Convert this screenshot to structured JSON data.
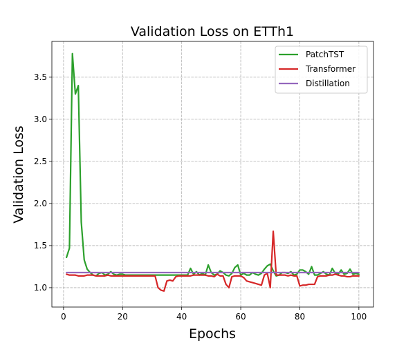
{
  "chart_data": {
    "type": "line",
    "title": "Validation Loss on ETTh1",
    "xlabel": "Epochs",
    "ylabel": "Validation Loss",
    "xlim": [
      -3.95,
      104.95
    ],
    "ylim": [
      0.77,
      3.925
    ],
    "xticks": [
      0,
      20,
      40,
      60,
      80,
      100
    ],
    "xtick_labels": [
      "0",
      "20",
      "40",
      "60",
      "80",
      "100"
    ],
    "yticks": [
      1.0,
      1.5,
      2.0,
      2.5,
      3.0,
      3.5
    ],
    "ytick_labels": [
      "1.0",
      "1.5",
      "2.0",
      "2.5",
      "3.0",
      "3.5"
    ],
    "grid": true,
    "legend": "top-right",
    "x": [
      1,
      2,
      3,
      4,
      5,
      6,
      7,
      8,
      9,
      10,
      11,
      12,
      13,
      14,
      15,
      16,
      17,
      18,
      19,
      20,
      21,
      22,
      23,
      24,
      25,
      26,
      27,
      28,
      29,
      30,
      31,
      32,
      33,
      34,
      35,
      36,
      37,
      38,
      39,
      40,
      41,
      42,
      43,
      44,
      45,
      46,
      47,
      48,
      49,
      50,
      51,
      52,
      53,
      54,
      55,
      56,
      57,
      58,
      59,
      60,
      61,
      62,
      63,
      64,
      65,
      66,
      67,
      68,
      69,
      70,
      71,
      72,
      73,
      74,
      75,
      76,
      77,
      78,
      79,
      80,
      81,
      82,
      83,
      84,
      85,
      86,
      87,
      88,
      89,
      90,
      91,
      92,
      93,
      94,
      95,
      96,
      97,
      98,
      99,
      100
    ],
    "series": [
      {
        "name": "PatchTST",
        "color": "#2ca02c",
        "values": [
          1.36,
          1.47,
          3.78,
          3.3,
          3.4,
          1.78,
          1.33,
          1.22,
          1.18,
          1.15,
          1.14,
          1.17,
          1.18,
          1.15,
          1.16,
          1.19,
          1.16,
          1.15,
          1.16,
          1.16,
          1.15,
          1.15,
          1.15,
          1.15,
          1.15,
          1.15,
          1.15,
          1.15,
          1.15,
          1.15,
          1.15,
          1.15,
          1.15,
          1.15,
          1.15,
          1.15,
          1.15,
          1.15,
          1.15,
          1.15,
          1.15,
          1.15,
          1.23,
          1.16,
          1.19,
          1.15,
          1.17,
          1.15,
          1.27,
          1.18,
          1.15,
          1.16,
          1.2,
          1.18,
          1.15,
          1.14,
          1.17,
          1.24,
          1.27,
          1.15,
          1.17,
          1.15,
          1.15,
          1.18,
          1.16,
          1.15,
          1.17,
          1.22,
          1.26,
          1.28,
          1.2,
          1.14,
          1.15,
          1.18,
          1.18,
          1.17,
          1.19,
          1.15,
          1.16,
          1.21,
          1.21,
          1.19,
          1.16,
          1.25,
          1.15,
          1.15,
          1.17,
          1.19,
          1.16,
          1.15,
          1.23,
          1.17,
          1.16,
          1.21,
          1.16,
          1.17,
          1.22,
          1.16,
          1.17,
          1.16
        ]
      },
      {
        "name": "Transformer",
        "color": "#d62728",
        "values": [
          1.16,
          1.15,
          1.15,
          1.15,
          1.14,
          1.14,
          1.14,
          1.15,
          1.15,
          1.15,
          1.14,
          1.14,
          1.14,
          1.14,
          1.15,
          1.14,
          1.14,
          1.14,
          1.14,
          1.14,
          1.14,
          1.14,
          1.14,
          1.14,
          1.14,
          1.14,
          1.14,
          1.14,
          1.14,
          1.14,
          1.14,
          1.0,
          0.97,
          0.96,
          1.08,
          1.09,
          1.08,
          1.13,
          1.14,
          1.14,
          1.14,
          1.14,
          1.14,
          1.15,
          1.15,
          1.15,
          1.15,
          1.15,
          1.14,
          1.14,
          1.13,
          1.16,
          1.14,
          1.14,
          1.04,
          1.0,
          1.13,
          1.14,
          1.14,
          1.14,
          1.12,
          1.08,
          1.07,
          1.06,
          1.05,
          1.04,
          1.03,
          1.15,
          1.17,
          1.0,
          1.67,
          1.15,
          1.15,
          1.15,
          1.15,
          1.14,
          1.15,
          1.14,
          1.14,
          1.02,
          1.03,
          1.03,
          1.04,
          1.04,
          1.04,
          1.13,
          1.14,
          1.14,
          1.14,
          1.15,
          1.15,
          1.16,
          1.15,
          1.14,
          1.14,
          1.13,
          1.13,
          1.14,
          1.14,
          1.14
        ]
      },
      {
        "name": "Distillation",
        "color": "#9467bd",
        "values": [
          1.18,
          1.18,
          1.18,
          1.18,
          1.18,
          1.18,
          1.18,
          1.18,
          1.18,
          1.18,
          1.18,
          1.18,
          1.18,
          1.18,
          1.18,
          1.18,
          1.18,
          1.18,
          1.18,
          1.18,
          1.18,
          1.18,
          1.18,
          1.18,
          1.18,
          1.18,
          1.18,
          1.18,
          1.18,
          1.18,
          1.18,
          1.18,
          1.18,
          1.18,
          1.18,
          1.18,
          1.18,
          1.18,
          1.18,
          1.18,
          1.18,
          1.18,
          1.18,
          1.18,
          1.18,
          1.18,
          1.18,
          1.18,
          1.18,
          1.18,
          1.18,
          1.18,
          1.18,
          1.18,
          1.18,
          1.18,
          1.18,
          1.18,
          1.18,
          1.18,
          1.18,
          1.18,
          1.18,
          1.18,
          1.18,
          1.18,
          1.18,
          1.18,
          1.18,
          1.18,
          1.18,
          1.18,
          1.18,
          1.18,
          1.18,
          1.18,
          1.18,
          1.18,
          1.18,
          1.18,
          1.18,
          1.18,
          1.18,
          1.18,
          1.18,
          1.18,
          1.18,
          1.18,
          1.18,
          1.18,
          1.18,
          1.18,
          1.18,
          1.18,
          1.18,
          1.18,
          1.18,
          1.18,
          1.18,
          1.18
        ]
      }
    ]
  }
}
